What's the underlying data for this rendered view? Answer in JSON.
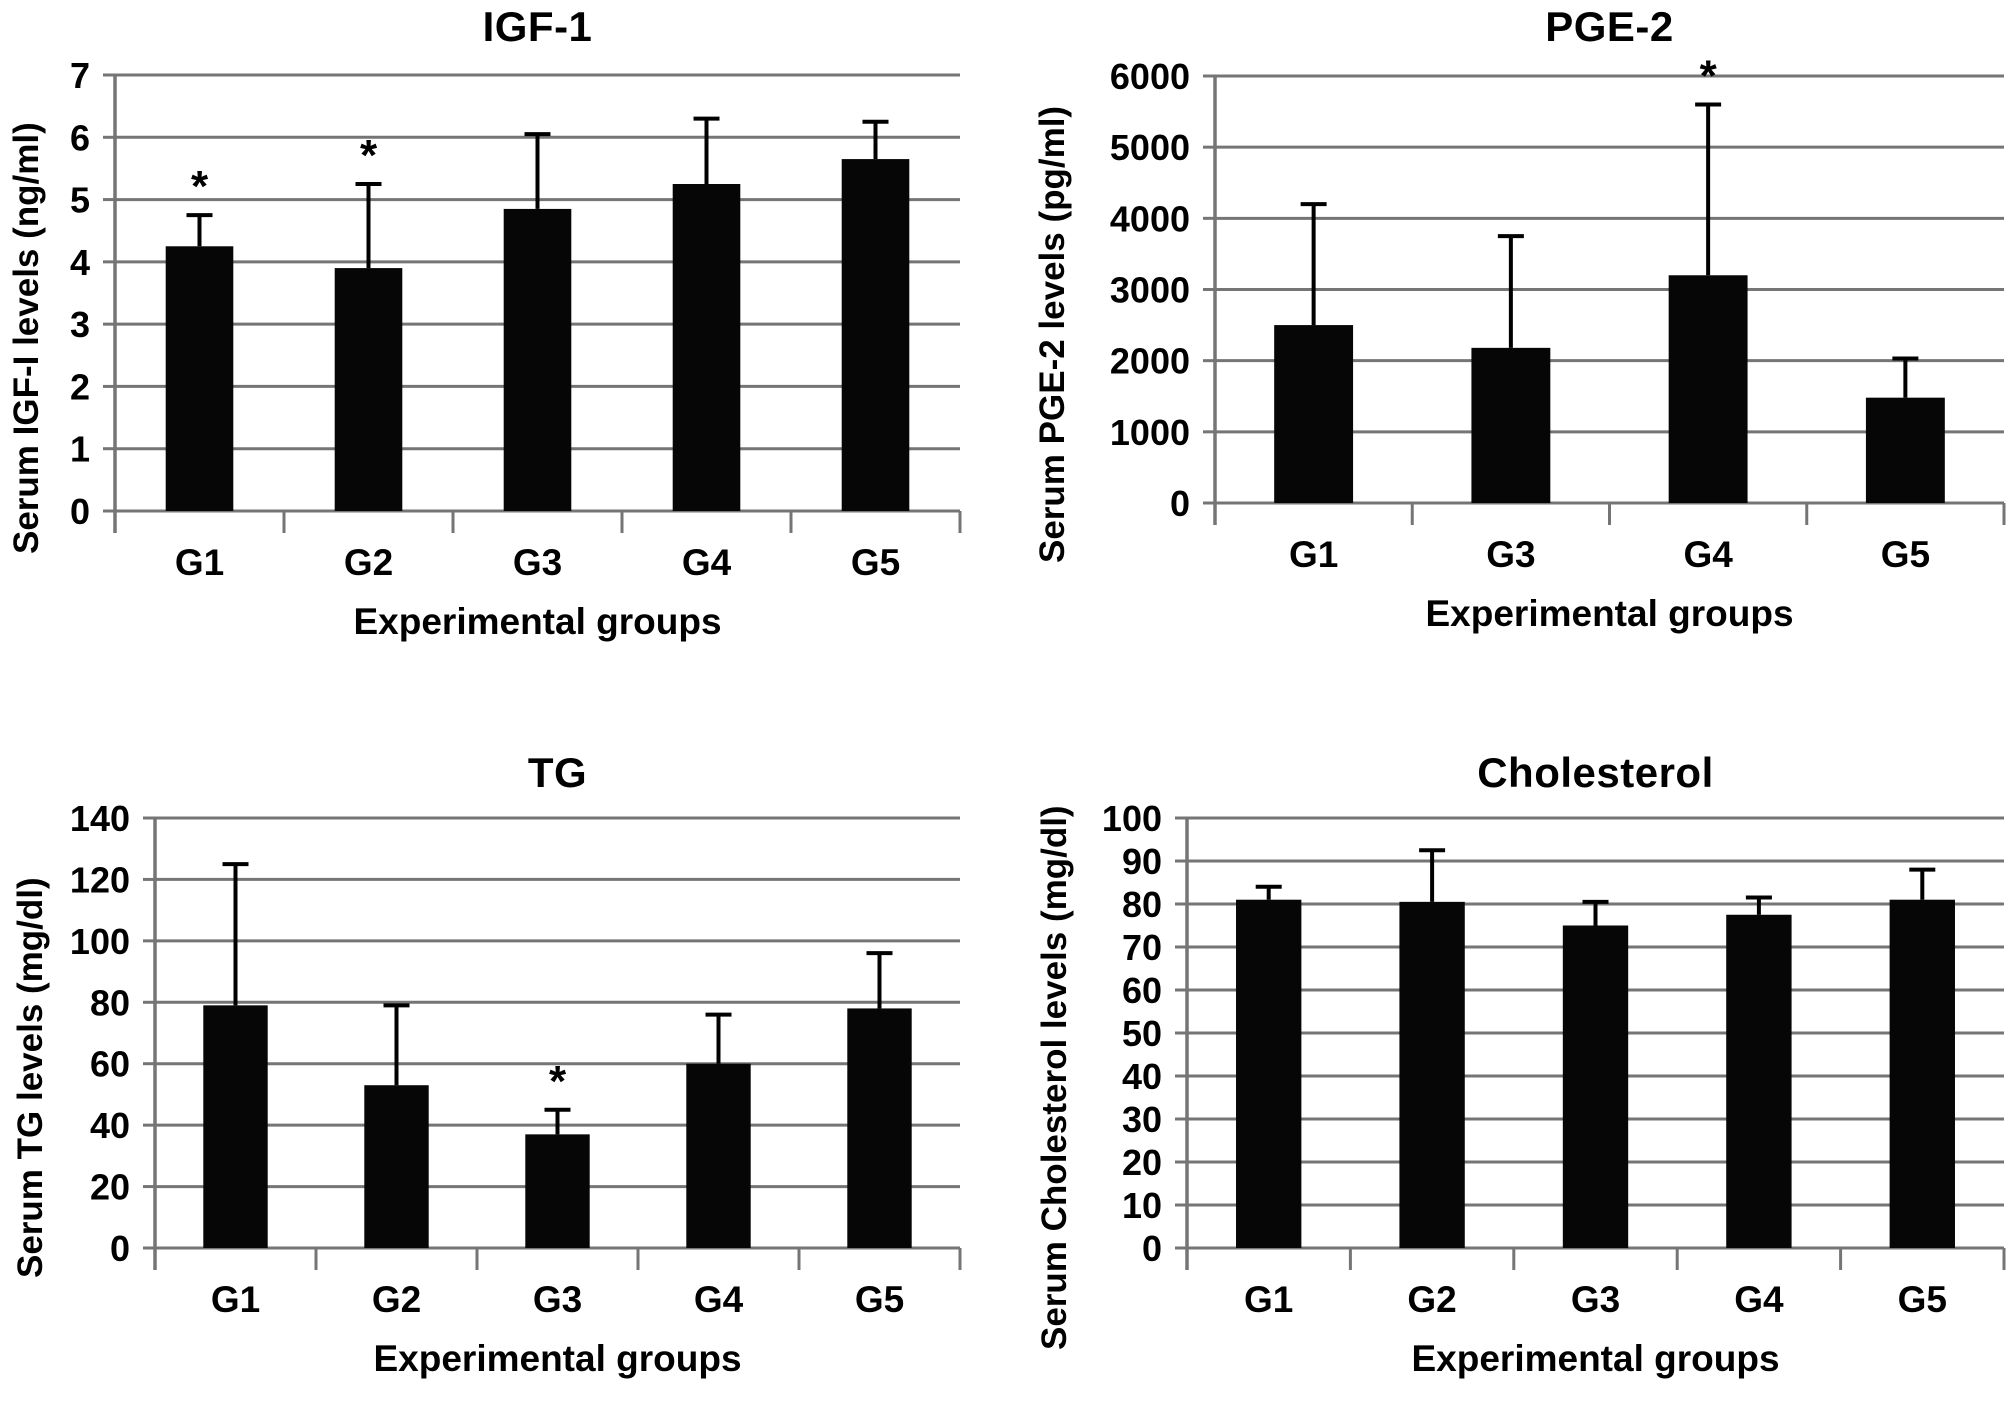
{
  "figure": {
    "background_color": "#ffffff",
    "text_color": "#000000",
    "grid_color": "#757575",
    "bar_color": "#060606"
  },
  "chart_data": [
    {
      "id": "igf1",
      "type": "bar",
      "title": "IGF-1",
      "ylabel": "Serum IGF-I levels (ng/ml)",
      "xlabel": "Experimental groups",
      "categories": [
        "G1",
        "G2",
        "G3",
        "G4",
        "G5"
      ],
      "values": [
        4.25,
        3.9,
        4.85,
        5.25,
        5.65
      ],
      "errors_up": [
        0.5,
        1.35,
        1.2,
        1.05,
        0.6
      ],
      "significance": [
        "*",
        "*",
        "",
        "",
        ""
      ],
      "ylim": [
        0,
        7
      ],
      "ytick_step": 1,
      "ytick_labels": [
        "0",
        "1",
        "2",
        "3",
        "4",
        "5",
        "6",
        "7"
      ],
      "grid": true,
      "legend": "none"
    },
    {
      "id": "pge2",
      "type": "bar",
      "title": "PGE-2",
      "ylabel": "Serum PGE-2 levels (pg/ml)",
      "xlabel": "Experimental groups",
      "categories": [
        "G1",
        "G3",
        "G4",
        "G5"
      ],
      "values": [
        2500,
        2180,
        3200,
        1480
      ],
      "errors_up": [
        1700,
        1570,
        2400,
        550
      ],
      "significance": [
        "",
        "",
        "*",
        ""
      ],
      "ylim": [
        0,
        6000
      ],
      "ytick_step": 1000,
      "ytick_labels": [
        "0",
        "1000",
        "2000",
        "3000",
        "4000",
        "5000",
        "6000"
      ],
      "grid": true,
      "legend": "none"
    },
    {
      "id": "tg",
      "type": "bar",
      "title": "TG",
      "ylabel": "Serum TG levels (mg/dl)",
      "xlabel": "Experimental groups",
      "categories": [
        "G1",
        "G2",
        "G3",
        "G4",
        "G5"
      ],
      "values": [
        79,
        53,
        37,
        60,
        78
      ],
      "errors_up": [
        46,
        26,
        8,
        16,
        18
      ],
      "significance": [
        "",
        "",
        "*",
        "",
        ""
      ],
      "ylim": [
        0,
        140
      ],
      "ytick_step": 20,
      "ytick_labels": [
        "0",
        "20",
        "40",
        "60",
        "80",
        "100",
        "120",
        "140"
      ],
      "grid": true,
      "legend": "none"
    },
    {
      "id": "cholesterol",
      "type": "bar",
      "title": "Cholesterol",
      "ylabel": "Serum Cholesterol levels  (mg/dl)",
      "xlabel": "Experimental groups",
      "categories": [
        "G1",
        "G2",
        "G3",
        "G4",
        "G5"
      ],
      "values": [
        81,
        80.5,
        75,
        77.5,
        81
      ],
      "errors_up": [
        3,
        12,
        5.5,
        4,
        7
      ],
      "significance": [
        "",
        "",
        "",
        "",
        ""
      ],
      "ylim": [
        0,
        100
      ],
      "ytick_step": 10,
      "ytick_labels": [
        "0",
        "10",
        "20",
        "30",
        "40",
        "50",
        "60",
        "70",
        "80",
        "90",
        "100"
      ],
      "grid": true,
      "legend": "none"
    }
  ]
}
